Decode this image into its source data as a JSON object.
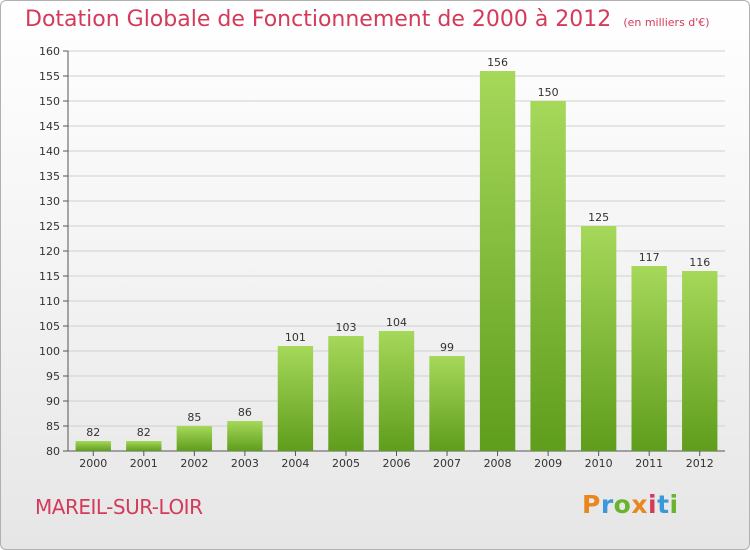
{
  "chart_data": {
    "type": "bar",
    "title": "Dotation Globale de Fonctionnement de 2000 à 2012",
    "subtitle": "(en milliers d'€)",
    "categories": [
      "2000",
      "2001",
      "2002",
      "2003",
      "2004",
      "2005",
      "2006",
      "2007",
      "2008",
      "2009",
      "2010",
      "2011",
      "2012"
    ],
    "values": [
      82,
      82,
      85,
      86,
      101,
      103,
      104,
      99,
      156,
      150,
      125,
      117,
      116
    ],
    "ylim": [
      80,
      160
    ],
    "yticks": [
      80,
      85,
      90,
      95,
      100,
      105,
      110,
      115,
      120,
      125,
      130,
      135,
      140,
      145,
      150,
      155,
      160
    ],
    "grid": true,
    "xlabel": "",
    "ylabel": ""
  },
  "footer": {
    "city": "MAREIL-SUR-LOIR",
    "logo_letters": [
      "P",
      "r",
      "o",
      "x",
      "i",
      "t",
      "i"
    ]
  },
  "colors": {
    "title": "#d43a5a",
    "bar_light": "#a6d85a",
    "bar_dark": "#5f9d1c",
    "grid": "#d0d0d0",
    "logo_letters": [
      "#e8871e",
      "#3a9ad9",
      "#6bb32e",
      "#e8871e",
      "#d43a5a",
      "#3a9ad9",
      "#6bb32e"
    ]
  }
}
